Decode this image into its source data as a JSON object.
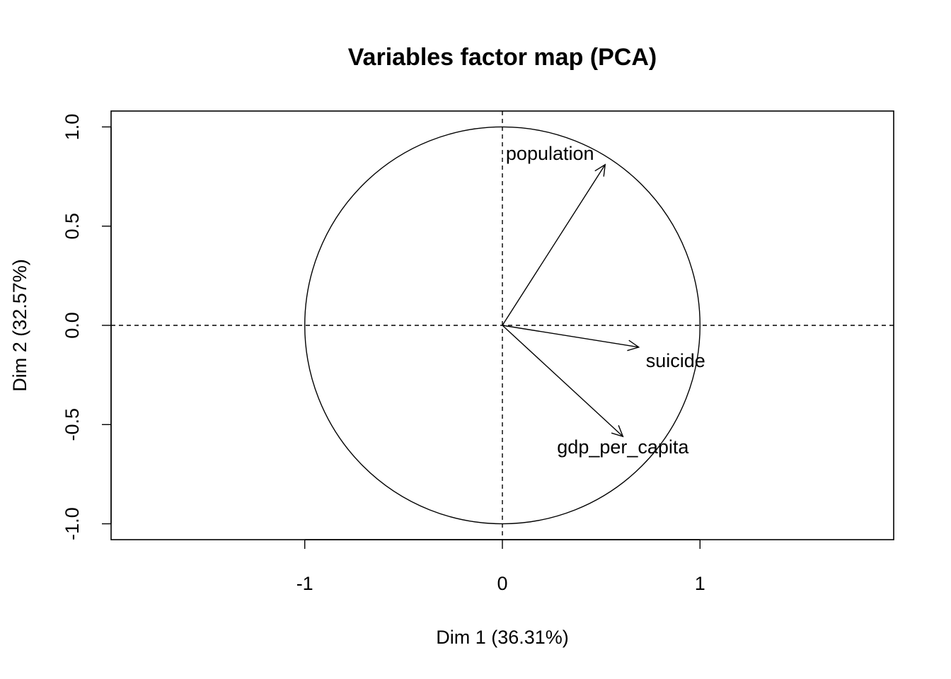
{
  "chart_data": {
    "type": "scatter",
    "subtype": "pca-variables-correlation-circle",
    "title": "Variables factor map (PCA)",
    "xlabel": "Dim 1 (36.31%)",
    "ylabel": "Dim 2 (32.57%)",
    "xlim": [
      -1.98,
      1.98
    ],
    "ylim": [
      -1.08,
      1.08
    ],
    "xticks": [
      -1,
      0,
      1
    ],
    "xtick_labels": [
      "-1",
      "0",
      "1"
    ],
    "yticks": [
      -1.0,
      -0.5,
      0.0,
      0.5,
      1.0
    ],
    "ytick_labels": [
      "-1.0",
      "-0.5",
      "0.0",
      "0.5",
      "1.0"
    ],
    "grid": false,
    "unit_circle": true,
    "reference_lines": {
      "x": 0,
      "y": 0,
      "style": "dashed"
    },
    "variables": [
      {
        "name": "population",
        "x": 0.52,
        "y": 0.81
      },
      {
        "name": "suicide",
        "x": 0.69,
        "y": -0.11
      },
      {
        "name": "gdp_per_capita",
        "x": 0.61,
        "y": -0.56
      }
    ]
  }
}
